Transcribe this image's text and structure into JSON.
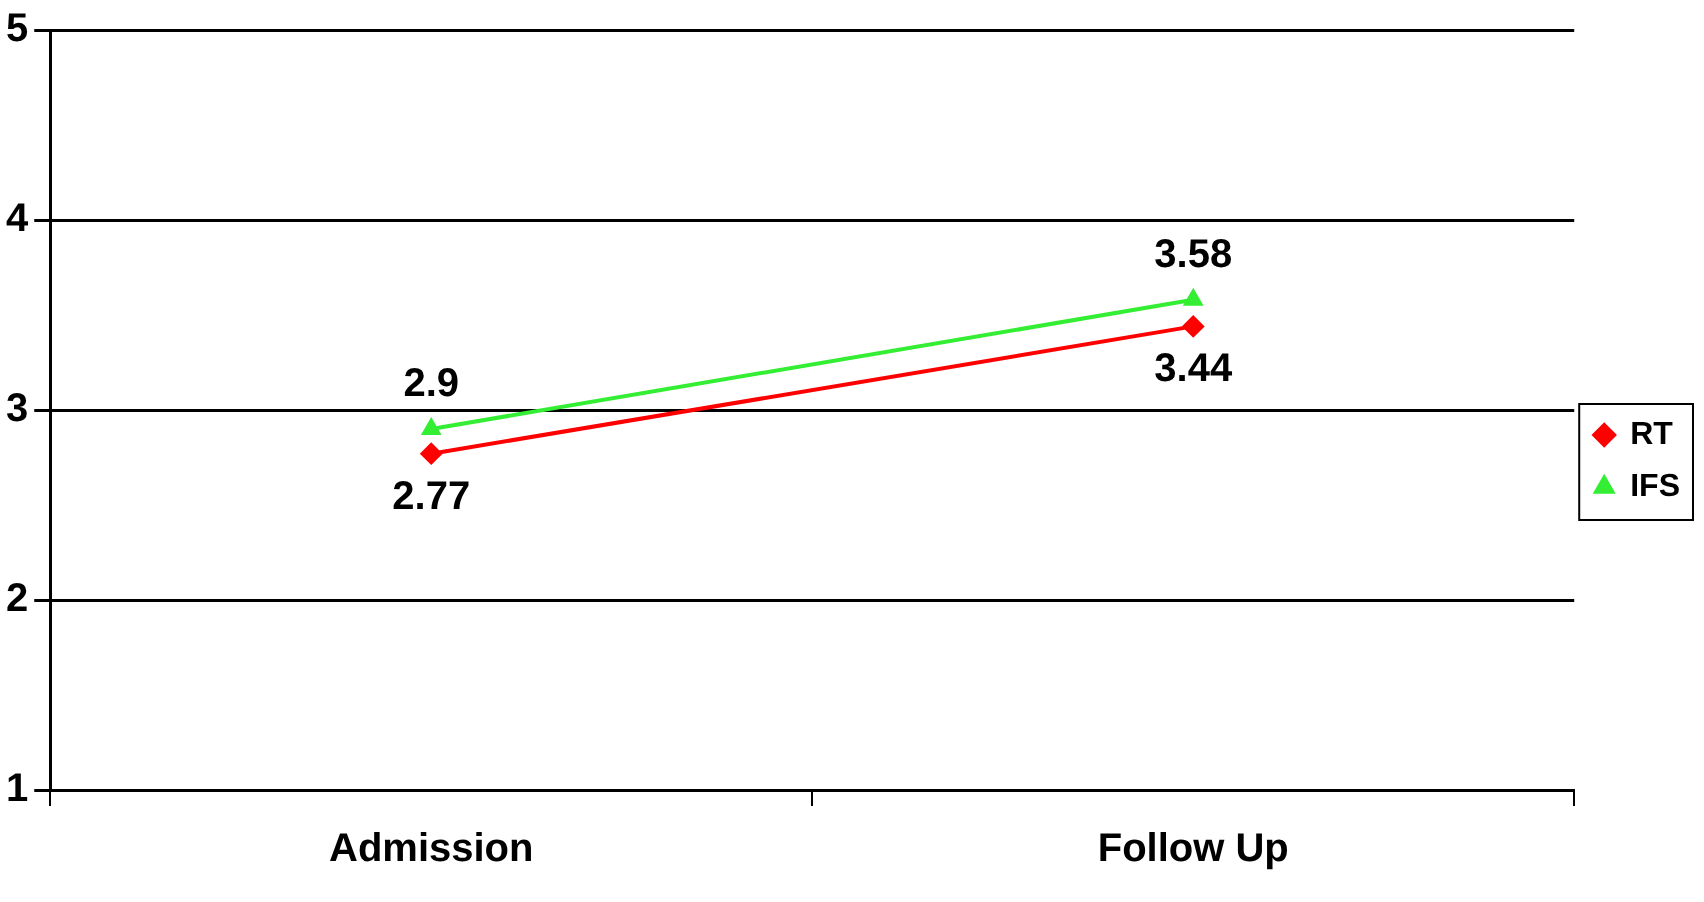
{
  "chart_data": {
    "type": "line",
    "categories": [
      "Admission",
      "Follow Up"
    ],
    "series": [
      {
        "name": "RT",
        "color": "#ff0000",
        "marker": "diamond",
        "values": [
          2.77,
          3.44
        ]
      },
      {
        "name": "IFS",
        "color": "#33ee33",
        "marker": "triangle",
        "values": [
          2.9,
          3.58
        ]
      }
    ],
    "ylim": [
      1,
      5
    ],
    "yticks": [
      1,
      2,
      3,
      4,
      5
    ],
    "grid": "y",
    "legend": "right",
    "data_labels": true
  }
}
